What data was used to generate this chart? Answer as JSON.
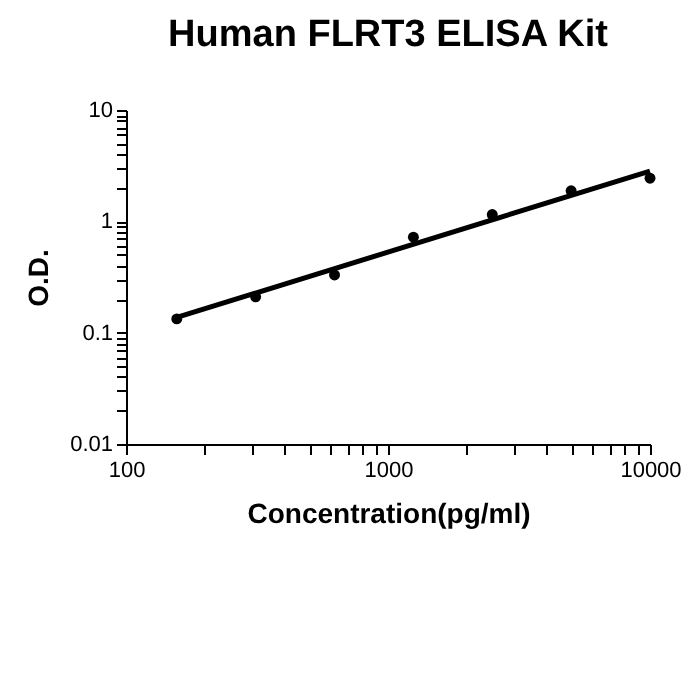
{
  "chart_data": {
    "type": "scatter",
    "title": "Human FLRT3 ELISA Kit",
    "xlabel": "Concentration(pg/ml)",
    "ylabel": "O.D.",
    "log": "xy",
    "marker": "circle",
    "grid": false,
    "xlim": [
      100,
      10000
    ],
    "ylim": [
      0.01,
      10
    ],
    "xticks": [
      100,
      {
        "value": 200,
        "label": null
      },
      {
        "value": 300,
        "label": null
      },
      {
        "value": 400,
        "label": null
      },
      {
        "value": 500,
        "label": null
      },
      {
        "value": 600,
        "label": null
      },
      {
        "value": 700,
        "label": null
      },
      {
        "value": 800,
        "label": null
      },
      {
        "value": 900,
        "label": null
      },
      1000,
      {
        "value": 2000,
        "label": null
      },
      {
        "value": 3000,
        "label": null
      },
      {
        "value": 4000,
        "label": null
      },
      {
        "value": 5000,
        "label": null
      },
      {
        "value": 6000,
        "label": null
      },
      {
        "value": 7000,
        "label": null
      },
      {
        "value": 8000,
        "label": null
      },
      {
        "value": 9000,
        "label": null
      },
      10000
    ],
    "yticks": [
      0.01,
      {
        "value": 0.02,
        "label": null
      },
      {
        "value": 0.03,
        "label": null
      },
      {
        "value": 0.04,
        "label": null
      },
      {
        "value": 0.05,
        "label": null
      },
      {
        "value": 0.06,
        "label": null
      },
      {
        "value": 0.07,
        "label": null
      },
      {
        "value": 0.08,
        "label": null
      },
      {
        "value": 0.09,
        "label": null
      },
      0.1,
      {
        "value": 0.2,
        "label": null
      },
      {
        "value": 0.3,
        "label": null
      },
      {
        "value": 0.4,
        "label": null
      },
      {
        "value": 0.5,
        "label": null
      },
      {
        "value": 0.6,
        "label": null
      },
      {
        "value": 0.7,
        "label": null
      },
      {
        "value": 0.8,
        "label": null
      },
      {
        "value": 0.9,
        "label": null
      },
      1,
      {
        "value": 2,
        "label": null
      },
      {
        "value": 3,
        "label": null
      },
      {
        "value": 4,
        "label": null
      },
      {
        "value": 5,
        "label": null
      },
      {
        "value": 6,
        "label": null
      },
      {
        "value": 7,
        "label": null
      },
      {
        "value": 8,
        "label": null
      },
      {
        "value": 9,
        "label": null
      },
      10
    ],
    "series": [
      {
        "type": "scatter",
        "color": "#000000",
        "x": [
          156.25,
          312.5,
          625,
          1250,
          2500,
          5000,
          10000
        ],
        "values": [
          0.133,
          0.21,
          0.33,
          0.72,
          1.15,
          1.88,
          2.44
        ]
      },
      {
        "type": "line",
        "marker": "none",
        "color": "#000000",
        "x": [
          156.25,
          10000
        ],
        "values": [
          0.137,
          2.83
        ]
      }
    ]
  }
}
